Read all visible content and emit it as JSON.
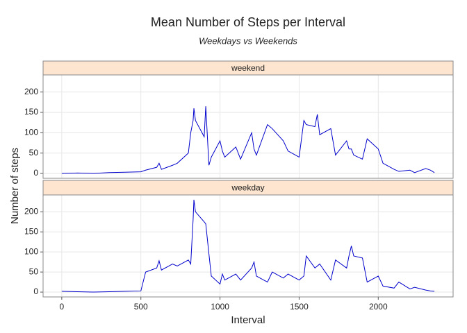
{
  "chart_data": {
    "type": "line",
    "title": "Mean Number of Steps per Interval",
    "subtitle": "Weekdays vs Weekends",
    "x_label": "Interval",
    "y_label": "Number of steps",
    "x": [
      0,
      100,
      200,
      300,
      400,
      500,
      530,
      600,
      615,
      630,
      700,
      730,
      800,
      815,
      830,
      835,
      845,
      900,
      910,
      930,
      945,
      1000,
      1015,
      1030,
      1100,
      1130,
      1200,
      1215,
      1230,
      1300,
      1330,
      1400,
      1430,
      1500,
      1530,
      1545,
      1600,
      1615,
      1630,
      1700,
      1730,
      1800,
      1815,
      1830,
      1845,
      1900,
      1930,
      2000,
      2030,
      2100,
      2130,
      2200,
      2230,
      2300,
      2330,
      2355
    ],
    "series": [
      {
        "name": "weekend",
        "color": "#0000cc",
        "values": [
          0,
          1,
          0,
          2,
          3,
          4,
          8,
          15,
          25,
          10,
          20,
          25,
          50,
          100,
          130,
          160,
          130,
          90,
          165,
          20,
          40,
          80,
          55,
          40,
          65,
          35,
          100,
          60,
          45,
          120,
          110,
          80,
          55,
          40,
          130,
          120,
          115,
          145,
          95,
          110,
          45,
          80,
          60,
          60,
          45,
          35,
          85,
          60,
          25,
          10,
          5,
          8,
          2,
          12,
          8,
          2
        ]
      },
      {
        "name": "weekday",
        "color": "#0000cc",
        "values": [
          2,
          1,
          0,
          1,
          2,
          3,
          50,
          60,
          78,
          55,
          70,
          65,
          80,
          70,
          180,
          230,
          200,
          175,
          170,
          95,
          40,
          20,
          45,
          30,
          45,
          30,
          60,
          75,
          40,
          25,
          50,
          35,
          45,
          30,
          40,
          90,
          60,
          65,
          70,
          30,
          80,
          60,
          90,
          115,
          90,
          85,
          25,
          40,
          15,
          10,
          25,
          8,
          12,
          5,
          3,
          2
        ]
      }
    ],
    "xlim": [
      -118,
      2473
    ],
    "xticks": [
      0,
      500,
      1000,
      1500,
      2000
    ],
    "ylim": [
      -12,
      242
    ],
    "yticks": [
      0,
      50,
      100,
      150,
      200
    ],
    "grid": true
  }
}
